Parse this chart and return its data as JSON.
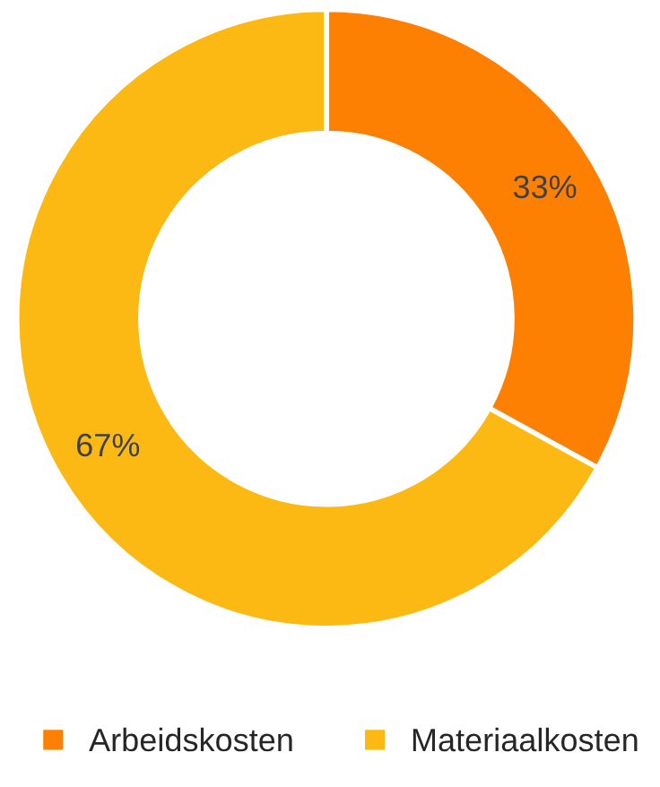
{
  "chart_data": {
    "type": "donut",
    "categories": [
      "Arbeidskosten",
      "Materiaalkosten"
    ],
    "values": [
      33,
      67
    ],
    "colors": [
      "#fd8002",
      "#fdb913"
    ],
    "value_labels": [
      "33%",
      "67%"
    ],
    "legend": "bottom"
  }
}
